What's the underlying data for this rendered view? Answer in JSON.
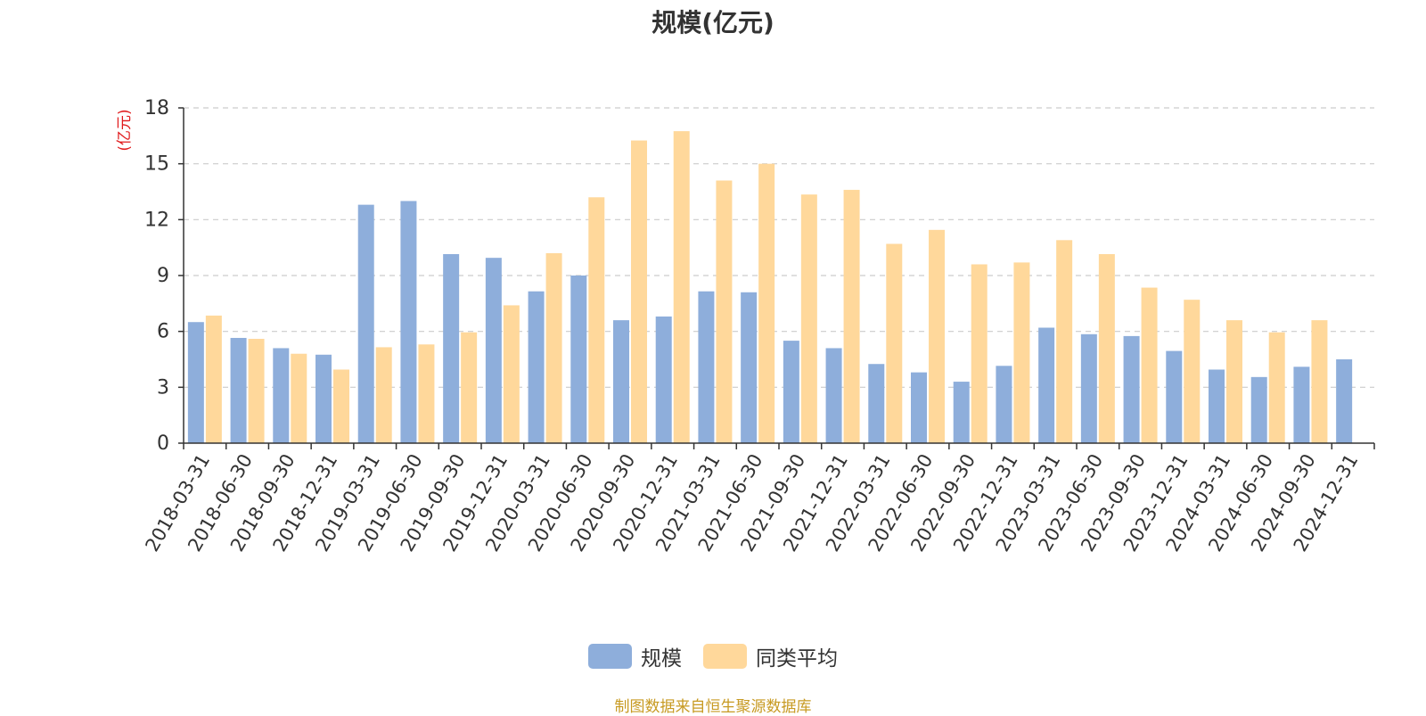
{
  "chart_data": {
    "type": "bar",
    "title": "规模(亿元)",
    "ylabel": "(亿元)",
    "xlabel": "",
    "ylim": [
      0,
      18
    ],
    "yticks": [
      0,
      3,
      6,
      9,
      12,
      15,
      18
    ],
    "categories": [
      "2018-03-31",
      "2018-06-30",
      "2018-09-30",
      "2018-12-31",
      "2019-03-31",
      "2019-06-30",
      "2019-09-30",
      "2019-12-31",
      "2020-03-31",
      "2020-06-30",
      "2020-09-30",
      "2020-12-31",
      "2021-03-31",
      "2021-06-30",
      "2021-09-30",
      "2021-12-31",
      "2022-03-31",
      "2022-06-30",
      "2022-09-30",
      "2022-12-31",
      "2023-03-31",
      "2023-06-30",
      "2023-09-30",
      "2023-12-31",
      "2024-03-31",
      "2024-06-30",
      "2024-09-30",
      "2024-12-31"
    ],
    "series": [
      {
        "name": "规模",
        "color": "#8eaedb",
        "values": [
          6.5,
          5.65,
          5.1,
          4.75,
          12.8,
          13.0,
          10.15,
          9.95,
          8.15,
          9.0,
          6.6,
          6.8,
          8.15,
          8.1,
          5.5,
          5.1,
          4.25,
          3.8,
          3.3,
          4.15,
          6.2,
          5.85,
          5.75,
          4.95,
          3.95,
          3.55,
          4.1,
          4.5
        ]
      },
      {
        "name": "同类平均",
        "color": "#ffd89b",
        "values": [
          6.85,
          5.6,
          4.8,
          3.95,
          5.15,
          5.3,
          5.95,
          7.4,
          10.2,
          13.2,
          16.25,
          16.75,
          14.1,
          15.0,
          13.35,
          13.6,
          10.7,
          11.45,
          9.6,
          9.7,
          10.9,
          10.15,
          8.35,
          7.7,
          6.6,
          5.95,
          6.6,
          null
        ]
      }
    ],
    "legend_position": "bottom-center",
    "grid": true
  },
  "footer": {
    "source": "制图数据来自恒生聚源数据库",
    "source_color": "#c79a22"
  },
  "colors": {
    "ylabel": "#e0191b",
    "axis": "#333333",
    "grid": "#cccccc",
    "tick_text": "#333333"
  }
}
